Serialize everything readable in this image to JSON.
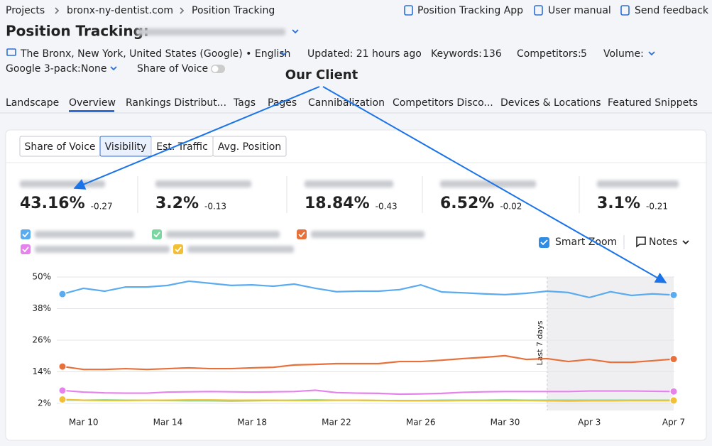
{
  "breadcrumbs": [
    "Projects",
    "bronx-ny-dentist.com",
    "Position Tracking"
  ],
  "header_links": [
    "Position Tracking App",
    "User manual",
    "Send feedback"
  ],
  "title": "Position Tracking:",
  "location": "The Bronx, New York, United States (Google) • English",
  "updated": "Updated: 21 hours ago",
  "keywords": {
    "label": "Keywords:",
    "value": "136"
  },
  "competitors": {
    "label": "Competitors:",
    "value": "5"
  },
  "volume": "Volume:",
  "google_3pack": {
    "label": "Google 3-pack:",
    "value": "None"
  },
  "share_of_voice_toggle": "Share of Voice",
  "annotation": "Our Client",
  "tabs": [
    "Landscape",
    "Overview",
    "Rankings Distribut...",
    "Tags",
    "Pages",
    "Cannibalization",
    "Competitors Disco...",
    "Devices & Locations",
    "Featured Snippets"
  ],
  "metric_tabs": [
    "Share of Voice",
    "Visibility",
    "Est. Traffic",
    "Avg. Position"
  ],
  "metrics": [
    {
      "value": "43.16%",
      "change": "-0.27"
    },
    {
      "value": "3.2%",
      "change": "-0.13"
    },
    {
      "value": "18.84%",
      "change": "-0.43"
    },
    {
      "value": "6.52%",
      "change": "-0.02"
    },
    {
      "value": "3.1%",
      "change": "-0.21"
    }
  ],
  "smart_zoom": "Smart Zoom",
  "notes": "Notes",
  "chart_data": {
    "type": "line",
    "categories": [
      null,
      "Mar 10",
      null,
      null,
      null,
      "Mar 14",
      null,
      null,
      null,
      "Mar 18",
      null,
      null,
      null,
      "Mar 22",
      null,
      null,
      null,
      "Mar 26",
      null,
      null,
      null,
      "Mar 30",
      null,
      null,
      null,
      "Apr 3",
      null,
      null,
      null,
      "Apr 7"
    ],
    "series": [
      {
        "color": "#5aabf0",
        "values": [
          43.5,
          45.7,
          44.6,
          46.2,
          46.2,
          46.8,
          48.4,
          47.6,
          46.8,
          47.0,
          46.5,
          47.3,
          45.7,
          44.4,
          44.6,
          44.6,
          45.2,
          47.0,
          44.3,
          44.0,
          43.6,
          43.3,
          43.8,
          44.6,
          44.1,
          42.2,
          44.4,
          43.0,
          43.6,
          43.16
        ]
      },
      {
        "color": "#7ad7a0",
        "values": [
          3.3,
          3.2,
          3.3,
          3.2,
          3.2,
          3.1,
          3.0,
          3.0,
          2.9,
          3.0,
          3.1,
          3.2,
          3.3,
          3.2,
          3.2,
          3.1,
          3.1,
          3.1,
          3.2,
          3.2,
          3.2,
          3.3,
          3.2,
          3.2,
          3.2,
          3.2,
          3.2,
          3.2,
          3.2,
          3.2
        ]
      },
      {
        "color": "#e8703a",
        "values": [
          16.0,
          14.9,
          14.9,
          15.2,
          14.9,
          15.2,
          15.5,
          15.2,
          15.2,
          15.5,
          15.7,
          16.6,
          16.8,
          17.1,
          17.1,
          17.1,
          17.9,
          17.9,
          18.4,
          19.0,
          19.5,
          20.1,
          18.7,
          19.0,
          17.9,
          18.7,
          17.6,
          17.6,
          18.2,
          18.84
        ]
      },
      {
        "color": "#e682ec",
        "values": [
          6.9,
          6.3,
          6.0,
          5.9,
          5.9,
          6.3,
          6.4,
          6.5,
          6.4,
          6.3,
          6.4,
          6.5,
          7.0,
          6.1,
          5.9,
          5.8,
          5.5,
          5.6,
          5.8,
          6.2,
          6.4,
          6.5,
          6.5,
          6.5,
          6.5,
          6.7,
          6.7,
          6.7,
          6.6,
          6.52
        ]
      },
      {
        "color": "#f2c037",
        "values": [
          3.5,
          3.2,
          3.1,
          3.1,
          3.2,
          3.2,
          3.3,
          3.3,
          3.2,
          3.2,
          3.2,
          3.1,
          3.1,
          3.2,
          3.2,
          3.1,
          3.0,
          3.0,
          3.0,
          3.1,
          3.1,
          3.1,
          3.1,
          3.0,
          2.9,
          3.0,
          3.0,
          3.1,
          3.1,
          3.1
        ]
      }
    ],
    "ylim": [
      2,
      50
    ],
    "yticks": [
      {
        "value": 2,
        "label": "2%"
      },
      {
        "value": 14,
        "label": "14%"
      },
      {
        "value": 26,
        "label": "26%"
      },
      {
        "value": 38,
        "label": "38%"
      },
      {
        "value": 50,
        "label": "50%"
      }
    ],
    "grid": true,
    "shaded_label": "Last 7 days"
  }
}
